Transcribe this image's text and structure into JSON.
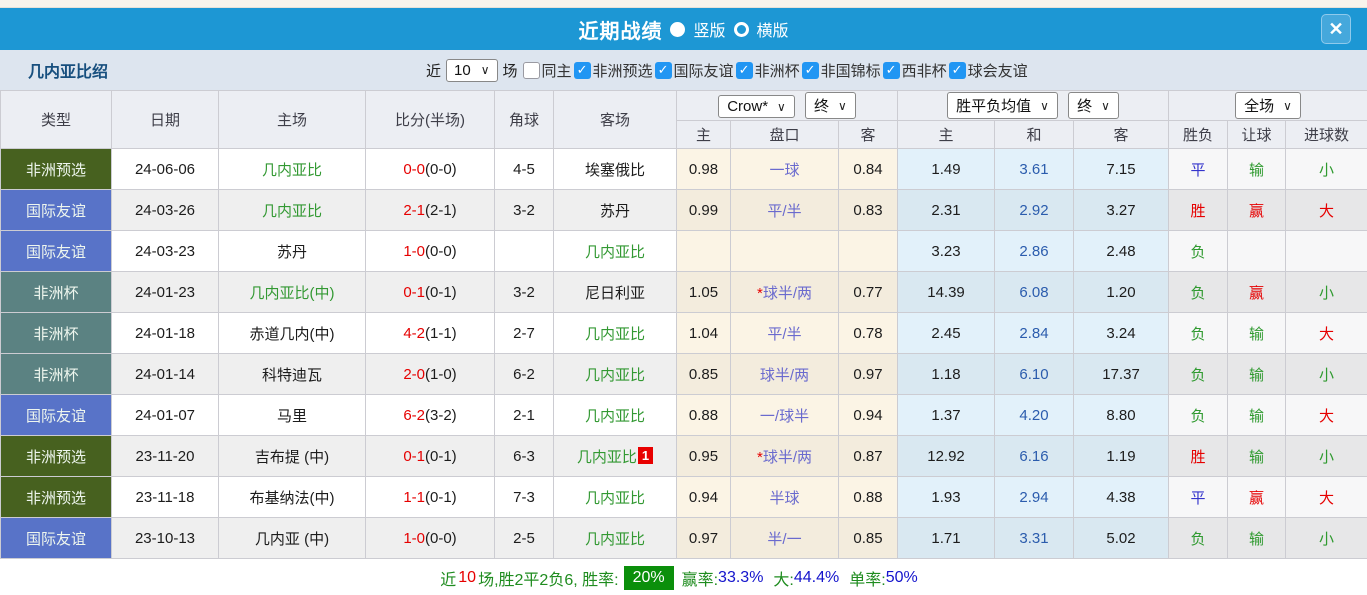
{
  "window": {
    "title": "近期战绩",
    "view_options": [
      {
        "label": "竖版",
        "selected": true
      },
      {
        "label": "横版",
        "selected": false
      }
    ],
    "close_icon": "✕"
  },
  "filters": {
    "team_name": "几内亚比绍",
    "recent_label": "近",
    "recent_value": "10",
    "matches_label": "场",
    "options": [
      {
        "label": "同主",
        "checked": false
      },
      {
        "label": "非洲预选",
        "checked": true
      },
      {
        "label": "国际友谊",
        "checked": true
      },
      {
        "label": "非洲杯",
        "checked": true
      },
      {
        "label": "非国锦标",
        "checked": true
      },
      {
        "label": "西非杯",
        "checked": true
      },
      {
        "label": "球会友谊",
        "checked": true
      }
    ]
  },
  "table": {
    "columns": [
      "类型",
      "日期",
      "主场",
      "比分(半场)",
      "角球",
      "客场"
    ],
    "odds_group": {
      "selects": [
        "Crow*",
        "终"
      ],
      "headers": [
        "主",
        "盘口",
        "客"
      ]
    },
    "mean_group": {
      "selects": [
        "胜平负均值",
        "终"
      ],
      "headers": [
        "主",
        "和",
        "客"
      ]
    },
    "result_group": {
      "selects": [
        "全场"
      ],
      "headers": [
        "胜负",
        "让球",
        "进球数"
      ]
    },
    "rows": [
      {
        "type": "非洲预选",
        "date": "24-06-06",
        "home": "几内亚比",
        "home_green": true,
        "ft": "0-0",
        "ht": "(0-0)",
        "corner": "4-5",
        "away": "埃塞俄比",
        "away_green": false,
        "away_badge": "",
        "h_odds": "0.98",
        "star": "",
        "handicap": "一球",
        "a_odds": "0.84",
        "m_home": "1.49",
        "m_draw": "3.61",
        "m_away": "7.15",
        "wdl": "平",
        "let": "输",
        "goals": "小"
      },
      {
        "type": "国际友谊",
        "date": "24-03-26",
        "home": "几内亚比",
        "home_green": true,
        "ft": "2-1",
        "ht": "(2-1)",
        "corner": "3-2",
        "away": "苏丹",
        "away_green": false,
        "away_badge": "",
        "h_odds": "0.99",
        "star": "",
        "handicap": "平/半",
        "a_odds": "0.83",
        "m_home": "2.31",
        "m_draw": "2.92",
        "m_away": "3.27",
        "wdl": "胜",
        "let": "赢",
        "goals": "大"
      },
      {
        "type": "国际友谊",
        "date": "24-03-23",
        "home": "苏丹",
        "home_green": false,
        "ft": "1-0",
        "ht": "(0-0)",
        "corner": "",
        "away": "几内亚比",
        "away_green": true,
        "away_badge": "",
        "h_odds": "",
        "star": "",
        "handicap": "",
        "a_odds": "",
        "m_home": "3.23",
        "m_draw": "2.86",
        "m_away": "2.48",
        "wdl": "负",
        "let": "",
        "goals": ""
      },
      {
        "type": "非洲杯",
        "date": "24-01-23",
        "home": "几内亚比(中)",
        "home_green": true,
        "ft": "0-1",
        "ht": "(0-1)",
        "corner": "3-2",
        "away": "尼日利亚",
        "away_green": false,
        "away_badge": "",
        "h_odds": "1.05",
        "star": "*",
        "handicap": "球半/两",
        "a_odds": "0.77",
        "m_home": "14.39",
        "m_draw": "6.08",
        "m_away": "1.20",
        "wdl": "负",
        "let": "赢",
        "goals": "小"
      },
      {
        "type": "非洲杯",
        "date": "24-01-18",
        "home": "赤道几内(中)",
        "home_green": false,
        "ft": "4-2",
        "ht": "(1-1)",
        "corner": "2-7",
        "away": "几内亚比",
        "away_green": true,
        "away_badge": "",
        "h_odds": "1.04",
        "star": "",
        "handicap": "平/半",
        "a_odds": "0.78",
        "m_home": "2.45",
        "m_draw": "2.84",
        "m_away": "3.24",
        "wdl": "负",
        "let": "输",
        "goals": "大"
      },
      {
        "type": "非洲杯",
        "date": "24-01-14",
        "home": "科特迪瓦",
        "home_green": false,
        "ft": "2-0",
        "ht": "(1-0)",
        "corner": "6-2",
        "away": "几内亚比",
        "away_green": true,
        "away_badge": "",
        "h_odds": "0.85",
        "star": "",
        "handicap": "球半/两",
        "a_odds": "0.97",
        "m_home": "1.18",
        "m_draw": "6.10",
        "m_away": "17.37",
        "wdl": "负",
        "let": "输",
        "goals": "小"
      },
      {
        "type": "国际友谊",
        "date": "24-01-07",
        "home": "马里",
        "home_green": false,
        "ft": "6-2",
        "ht": "(3-2)",
        "corner": "2-1",
        "away": "几内亚比",
        "away_green": true,
        "away_badge": "",
        "h_odds": "0.88",
        "star": "",
        "handicap": "一/球半",
        "a_odds": "0.94",
        "m_home": "1.37",
        "m_draw": "4.20",
        "m_away": "8.80",
        "wdl": "负",
        "let": "输",
        "goals": "大"
      },
      {
        "type": "非洲预选",
        "date": "23-11-20",
        "home": "吉布提 (中)",
        "home_green": false,
        "ft": "0-1",
        "ht": "(0-1)",
        "corner": "6-3",
        "away": "几内亚比",
        "away_green": true,
        "away_badge": "1",
        "h_odds": "0.95",
        "star": "*",
        "handicap": "球半/两",
        "a_odds": "0.87",
        "m_home": "12.92",
        "m_draw": "6.16",
        "m_away": "1.19",
        "wdl": "胜",
        "let": "输",
        "goals": "小"
      },
      {
        "type": "非洲预选",
        "date": "23-11-18",
        "home": "布基纳法(中)",
        "home_green": false,
        "ft": "1-1",
        "ht": "(0-1)",
        "corner": "7-3",
        "away": "几内亚比",
        "away_green": true,
        "away_badge": "",
        "h_odds": "0.94",
        "star": "",
        "handicap": "半球",
        "a_odds": "0.88",
        "m_home": "1.93",
        "m_draw": "2.94",
        "m_away": "4.38",
        "wdl": "平",
        "let": "赢",
        "goals": "大"
      },
      {
        "type": "国际友谊",
        "date": "23-10-13",
        "home": "几内亚 (中)",
        "home_green": false,
        "ft": "1-0",
        "ht": "(0-0)",
        "corner": "2-5",
        "away": "几内亚比",
        "away_green": true,
        "away_badge": "",
        "h_odds": "0.97",
        "star": "",
        "handicap": "半/一",
        "a_odds": "0.85",
        "m_home": "1.71",
        "m_draw": "3.31",
        "m_away": "5.02",
        "wdl": "负",
        "let": "输",
        "goals": "小"
      }
    ]
  },
  "summary": {
    "prefix": "近",
    "count": "10",
    "middle": "场,胜2平2负6, 胜率:",
    "win_rate": "20%",
    "stats": [
      {
        "label": "赢率:",
        "value": "33.3%"
      },
      {
        "label": "大:",
        "value": "44.4%"
      },
      {
        "label": "单率:",
        "value": "50%"
      }
    ]
  },
  "colors": {
    "titlebar_blue": "#1d97d4",
    "checkbox_blue": "#2196f3",
    "type_badges": {
      "非洲预选": "#47611f",
      "国际友谊": "#5873c8",
      "非洲杯": "#5b8282"
    },
    "score_red": "#e60000",
    "team_green": "#339933",
    "handicap_purple": "#6a6ace",
    "mean_blue": "#2b5cad",
    "rate_badge_green": "#0b8f0b",
    "result_class": {
      "胜": "red",
      "平": "blue",
      "负": "green",
      "赢": "red",
      "输": "green",
      "大": "red",
      "小": "green"
    }
  }
}
